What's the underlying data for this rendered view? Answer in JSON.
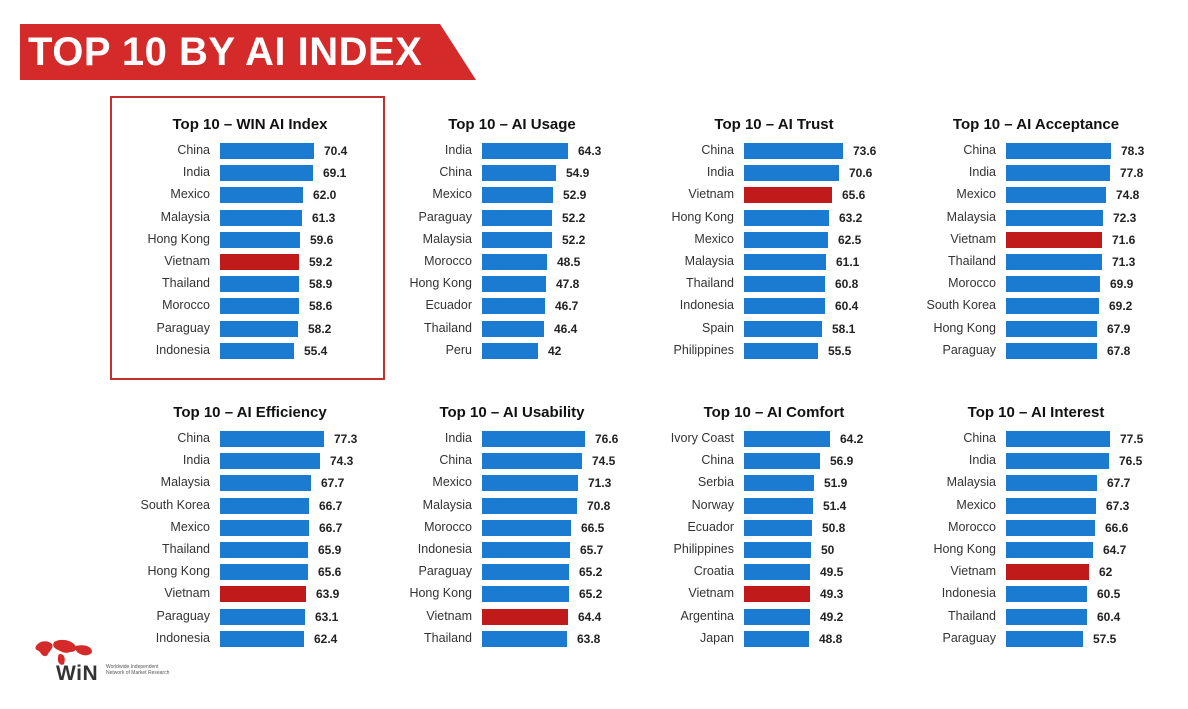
{
  "header": {
    "title": "TOP 10 BY AI INDEX"
  },
  "colors": {
    "banner": "#d42a2a",
    "bar": "#1a7bd0",
    "highlight": "#c11a1a",
    "box": "#c0302e"
  },
  "logo": {
    "wordmark": "WiN",
    "tagline": "Worldwide Independent Network of Market Research"
  },
  "chart_data": [
    {
      "type": "bar",
      "title": "Top 10 – WIN AI Index",
      "categories": [
        "China",
        "India",
        "Mexico",
        "Malaysia",
        "Hong Kong",
        "Vietnam",
        "Thailand",
        "Morocco",
        "Paraguay",
        "Indonesia"
      ],
      "values": [
        "70.4",
        "69.1",
        "62.0",
        "61.3",
        "59.6",
        "59.2",
        "58.9",
        "58.6",
        "58.2",
        "55.4"
      ],
      "highlight": "Vietnam"
    },
    {
      "type": "bar",
      "title": "Top 10 – AI Usage",
      "categories": [
        "India",
        "China",
        "Mexico",
        "Paraguay",
        "Malaysia",
        "Morocco",
        "Hong Kong",
        "Ecuador",
        "Thailand",
        "Peru"
      ],
      "values": [
        "64.3",
        "54.9",
        "52.9",
        "52.2",
        "52.2",
        "48.5",
        "47.8",
        "46.7",
        "46.4",
        "42"
      ],
      "highlight": ""
    },
    {
      "type": "bar",
      "title": "Top 10 – AI Trust",
      "categories": [
        "China",
        "India",
        "Vietnam",
        "Hong Kong",
        "Mexico",
        "Malaysia",
        "Thailand",
        "Indonesia",
        "Spain",
        "Philippines"
      ],
      "values": [
        "73.6",
        "70.6",
        "65.6",
        "63.2",
        "62.5",
        "61.1",
        "60.8",
        "60.4",
        "58.1",
        "55.5"
      ],
      "highlight": "Vietnam"
    },
    {
      "type": "bar",
      "title": "Top 10 – AI Acceptance",
      "categories": [
        "China",
        "India",
        "Mexico",
        "Malaysia",
        "Vietnam",
        "Thailand",
        "Morocco",
        "South Korea",
        "Hong Kong",
        "Paraguay"
      ],
      "values": [
        "78.3",
        "77.8",
        "74.8",
        "72.3",
        "71.6",
        "71.3",
        "69.9",
        "69.2",
        "67.9",
        "67.8"
      ],
      "highlight": "Vietnam"
    },
    {
      "type": "bar",
      "title": "Top 10 – AI Efficiency",
      "categories": [
        "China",
        "India",
        "Malaysia",
        "South Korea",
        "Mexico",
        "Thailand",
        "Hong Kong",
        "Vietnam",
        "Paraguay",
        "Indonesia"
      ],
      "values": [
        "77.3",
        "74.3",
        "67.7",
        "66.7",
        "66.7",
        "65.9",
        "65.6",
        "63.9",
        "63.1",
        "62.4"
      ],
      "highlight": "Vietnam"
    },
    {
      "type": "bar",
      "title": "Top 10 – AI Usability",
      "categories": [
        "India",
        "China",
        "Mexico",
        "Malaysia",
        "Morocco",
        "Indonesia",
        "Paraguay",
        "Hong Kong",
        "Vietnam",
        "Thailand"
      ],
      "values": [
        "76.6",
        "74.5",
        "71.3",
        "70.8",
        "66.5",
        "65.7",
        "65.2",
        "65.2",
        "64.4",
        "63.8"
      ],
      "highlight": "Vietnam"
    },
    {
      "type": "bar",
      "title": "Top 10 – AI Comfort",
      "categories": [
        "Ivory Coast",
        "China",
        "Serbia",
        "Norway",
        "Ecuador",
        "Philippines",
        "Croatia",
        "Vietnam",
        "Argentina",
        "Japan"
      ],
      "values": [
        "64.2",
        "56.9",
        "51.9",
        "51.4",
        "50.8",
        "50",
        "49.5",
        "49.3",
        "49.2",
        "48.8"
      ],
      "highlight": "Vietnam"
    },
    {
      "type": "bar",
      "title": "Top 10 – AI Interest",
      "categories": [
        "China",
        "India",
        "Malaysia",
        "Mexico",
        "Morocco",
        "Hong Kong",
        "Vietnam",
        "Indonesia",
        "Thailand",
        "Paraguay"
      ],
      "values": [
        "77.5",
        "76.5",
        "67.7",
        "67.3",
        "66.6",
        "64.7",
        "62",
        "60.5",
        "60.4",
        "57.5"
      ],
      "highlight": "Vietnam"
    }
  ]
}
